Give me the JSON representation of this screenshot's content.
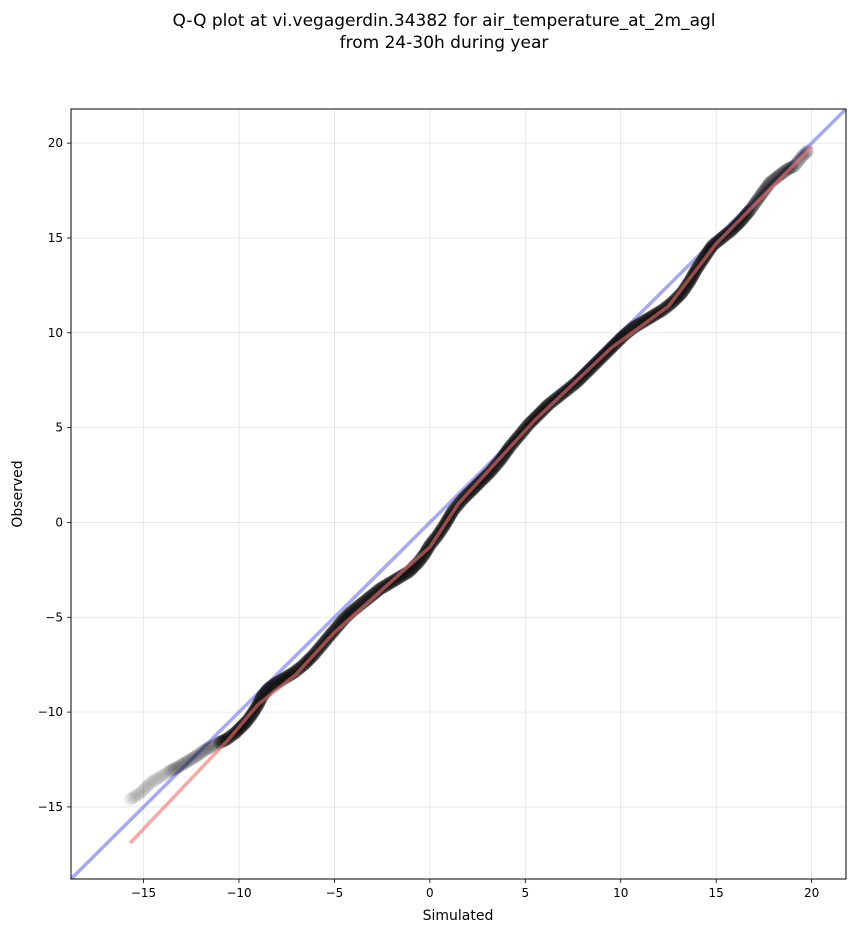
{
  "chart_data": {
    "type": "scatter",
    "title": [
      "Q-Q plot at vi.vegagerdin.34382 for air_temperature_at_2m_agl",
      "from 24-30h during year"
    ],
    "xlabel": "Simulated",
    "ylabel": "Observed",
    "xlim": [
      -18.8,
      21.8
    ],
    "ylim": [
      -18.8,
      21.8
    ],
    "x_ticks": [
      -15,
      -10,
      -5,
      0,
      5,
      10,
      15,
      20
    ],
    "y_ticks": [
      -15,
      -10,
      -5,
      0,
      5,
      10,
      15,
      20
    ],
    "x_tick_labels": [
      "−15",
      "−10",
      "−5",
      "0",
      "5",
      "10",
      "15",
      "20"
    ],
    "y_tick_labels": [
      "−15",
      "−10",
      "−5",
      "0",
      "5",
      "10",
      "15",
      "20"
    ],
    "grid": true,
    "series": [
      {
        "role": "quantiles",
        "color": "#000000",
        "points": [
          [
            -15.7,
            -14.6
          ],
          [
            -15.2,
            -14.3
          ],
          [
            -14.6,
            -13.7
          ],
          [
            -14.1,
            -13.4
          ],
          [
            -13.6,
            -13.1
          ],
          [
            -13.2,
            -12.9
          ],
          [
            -12.7,
            -12.6
          ],
          [
            -12.2,
            -12.3
          ],
          [
            -11.8,
            -12.0
          ],
          [
            -11.4,
            -11.8
          ],
          [
            -11.0,
            -11.6
          ],
          [
            -10.6,
            -11.4
          ],
          [
            -10.2,
            -11.1
          ],
          [
            -9.9,
            -10.8
          ],
          [
            -9.6,
            -10.5
          ],
          [
            -9.3,
            -10.1
          ],
          [
            -9.0,
            -9.6
          ],
          [
            -8.8,
            -9.2
          ],
          [
            -8.5,
            -8.8
          ],
          [
            -8.1,
            -8.5
          ],
          [
            -7.6,
            -8.2
          ],
          [
            -7.1,
            -7.9
          ],
          [
            -6.6,
            -7.5
          ],
          [
            -6.1,
            -7.0
          ],
          [
            -5.6,
            -6.4
          ],
          [
            -5.1,
            -5.8
          ],
          [
            -4.6,
            -5.2
          ],
          [
            -4.1,
            -4.7
          ],
          [
            -3.6,
            -4.3
          ],
          [
            -3.1,
            -3.9
          ],
          [
            -2.6,
            -3.5
          ],
          [
            -2.1,
            -3.2
          ],
          [
            -1.6,
            -2.9
          ],
          [
            -1.1,
            -2.6
          ],
          [
            -0.6,
            -2.1
          ],
          [
            -0.3,
            -1.7
          ],
          [
            0.0,
            -1.2
          ],
          [
            0.4,
            -0.7
          ],
          [
            0.8,
            -0.1
          ],
          [
            1.2,
            0.6
          ],
          [
            1.7,
            1.2
          ],
          [
            2.2,
            1.7
          ],
          [
            2.7,
            2.2
          ],
          [
            3.2,
            2.7
          ],
          [
            3.7,
            3.3
          ],
          [
            4.2,
            4.0
          ],
          [
            4.7,
            4.6
          ],
          [
            5.2,
            5.2
          ],
          [
            5.7,
            5.7
          ],
          [
            6.2,
            6.2
          ],
          [
            6.7,
            6.6
          ],
          [
            7.2,
            7.0
          ],
          [
            7.7,
            7.4
          ],
          [
            8.2,
            7.9
          ],
          [
            8.7,
            8.4
          ],
          [
            9.2,
            8.9
          ],
          [
            9.7,
            9.4
          ],
          [
            10.2,
            9.9
          ],
          [
            10.7,
            10.3
          ],
          [
            11.2,
            10.6
          ],
          [
            11.7,
            10.9
          ],
          [
            12.2,
            11.2
          ],
          [
            12.7,
            11.6
          ],
          [
            13.2,
            12.1
          ],
          [
            13.6,
            12.7
          ],
          [
            14.0,
            13.4
          ],
          [
            14.4,
            14.0
          ],
          [
            14.8,
            14.6
          ],
          [
            15.3,
            15.0
          ],
          [
            15.8,
            15.4
          ],
          [
            16.3,
            15.9
          ],
          [
            16.8,
            16.5
          ],
          [
            17.3,
            17.2
          ],
          [
            17.8,
            17.9
          ],
          [
            18.3,
            18.3
          ],
          [
            18.7,
            18.6
          ],
          [
            19.1,
            18.8
          ],
          [
            19.5,
            19.3
          ],
          [
            19.8,
            19.6
          ]
        ]
      },
      {
        "role": "fit-line",
        "color": "#f07070",
        "points": [
          [
            -15.7,
            -16.9
          ],
          [
            -10.6,
            -11.5
          ],
          [
            -9.0,
            -9.6
          ],
          [
            -7.0,
            -8.0
          ],
          [
            -5.0,
            -5.8
          ],
          [
            -2.0,
            -3.1
          ],
          [
            0.0,
            -1.3
          ],
          [
            1.5,
            1.0
          ],
          [
            5.5,
            5.4
          ],
          [
            9.5,
            9.2
          ],
          [
            12.5,
            11.4
          ],
          [
            15.0,
            14.7
          ],
          [
            20.0,
            19.8
          ]
        ]
      },
      {
        "role": "reference-line",
        "color": "#7b7bea",
        "points": [
          [
            -18.8,
            -18.8
          ],
          [
            21.8,
            21.8
          ]
        ]
      }
    ]
  }
}
